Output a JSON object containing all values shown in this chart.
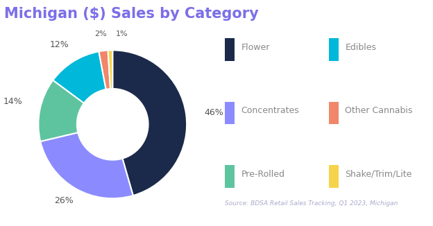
{
  "title": "Michigan ($) Sales by Category",
  "title_color": "#7B6FE8",
  "slices": [
    46,
    26,
    14,
    12,
    2,
    1
  ],
  "labels": [
    "46%",
    "26%",
    "14%",
    "12%",
    "2%",
    "1%"
  ],
  "colors": [
    "#1b2a4a",
    "#8b8bff",
    "#5ec4a0",
    "#00b8d9",
    "#f0876a",
    "#f5d44b"
  ],
  "categories": [
    "Flower",
    "Concentrates",
    "Pre-Rolled",
    "Edibles",
    "Other Cannabis",
    "Shake/Trim/Lite"
  ],
  "legend_colors": [
    "#1b2a4a",
    "#8b8bff",
    "#5ec4a0",
    "#00b8d9",
    "#f0876a",
    "#f5d44b"
  ],
  "source_text": "Source: BDSA Retail Sales Tracking, Q1 2023, Michigan",
  "source_color": "#aaaacc",
  "background_color": "#ffffff"
}
